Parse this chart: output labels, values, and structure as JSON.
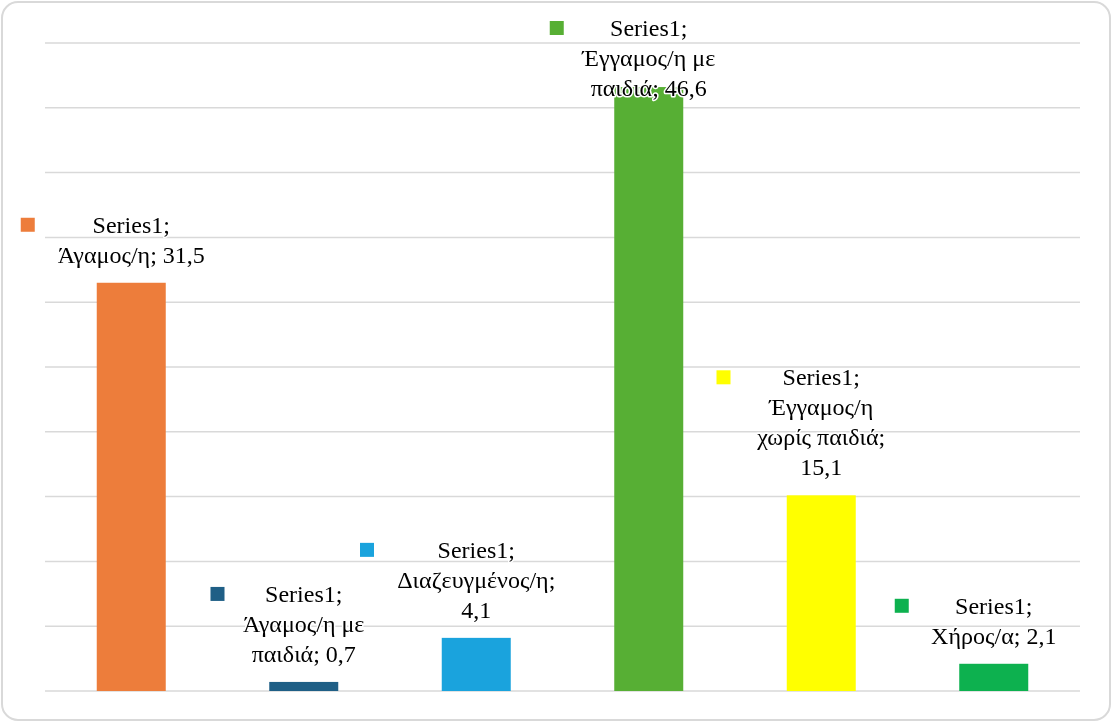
{
  "chart_data": {
    "type": "bar",
    "categories": [
      null,
      null,
      null,
      null,
      null,
      null
    ],
    "series": [
      {
        "colors": [
          "#ed7d3b",
          "#1f5f86",
          "#1aa3dd",
          "#57af34",
          "#ffff00",
          "#0db14f"
        ],
        "values": [
          31.5,
          0.7,
          4.1,
          46.6,
          15.1,
          2.1
        ],
        "value_labels": [
          "Series1; Άγαμος/η; 31,5",
          "Series1; Άγαμος/η με παιδιά; 0,7",
          "Series1; Διαζευγμένος/η; 4,1",
          "Series1; Έγγαμος/η με παιδιά; 46,6",
          "Series1; Έγγαμος/η χωρίς παιδιά; 15,1",
          "Series1; Χήρος/α; 2,1"
        ]
      }
    ],
    "ylim": [
      0,
      50
    ],
    "yticks": [
      {
        "value": 0,
        "label": null
      },
      {
        "value": 5,
        "label": null
      },
      {
        "value": 10,
        "label": null
      },
      {
        "value": 15,
        "label": null
      },
      {
        "value": 20,
        "label": null
      },
      {
        "value": 25,
        "label": null
      },
      {
        "value": 30,
        "label": null
      },
      {
        "value": 35,
        "label": null
      },
      {
        "value": 40,
        "label": null
      },
      {
        "value": 45,
        "label": null
      },
      {
        "value": 50,
        "label": null
      }
    ],
    "grid": "y"
  }
}
